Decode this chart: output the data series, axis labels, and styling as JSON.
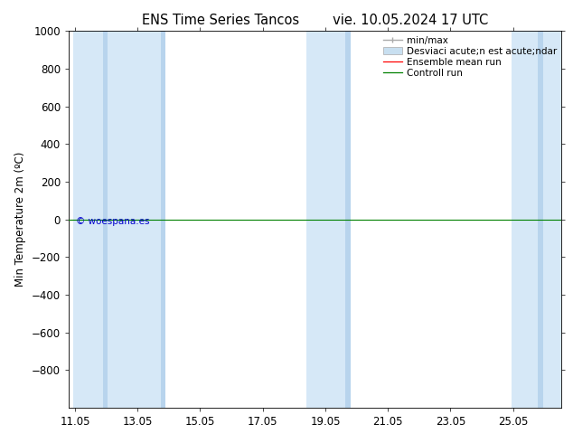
{
  "title": "ENS Time Series Tancos        vie. 10.05.2024 17 UTC",
  "ylabel": "Min Temperature 2m (ºC)",
  "xlim_min": 10.85,
  "xlim_max": 26.6,
  "ylim_top": -1000,
  "ylim_bottom": 1000,
  "yticks": [
    -800,
    -600,
    -400,
    -200,
    0,
    200,
    400,
    600,
    800,
    1000
  ],
  "xticks": [
    11.05,
    13.05,
    15.05,
    17.05,
    19.05,
    21.05,
    23.05,
    25.05
  ],
  "xtick_labels": [
    "11.05",
    "13.05",
    "15.05",
    "17.05",
    "19.05",
    "21.05",
    "23.05",
    "25.05"
  ],
  "shaded_bands_light": [
    [
      11.0,
      12.1
    ],
    [
      12.1,
      13.95
    ],
    [
      18.45,
      19.85
    ],
    [
      25.0,
      26.6
    ]
  ],
  "shaded_bands_dark": [
    [
      11.95,
      12.1
    ],
    [
      13.8,
      13.95
    ],
    [
      19.7,
      19.85
    ],
    [
      25.85,
      26.0
    ]
  ],
  "shaded_color_light": "#d6e8f7",
  "shaded_color_dark": "#b8d4ed",
  "green_line_y": 0,
  "watermark": "© woespana.es",
  "watermark_color": "#0000cc",
  "legend_label_minmax": "min/max",
  "legend_label_std": "Desviaci acute;n est acute;ndar",
  "legend_label_mean": "Ensemble mean run",
  "legend_label_ctrl": "Controll run",
  "legend_color_minmax": "#aaaaaa",
  "legend_color_std": "#c8dff0",
  "legend_color_mean": "red",
  "legend_color_ctrl": "green",
  "bg_color": "#ffffff",
  "font_size": 8.5,
  "title_font_size": 10.5
}
